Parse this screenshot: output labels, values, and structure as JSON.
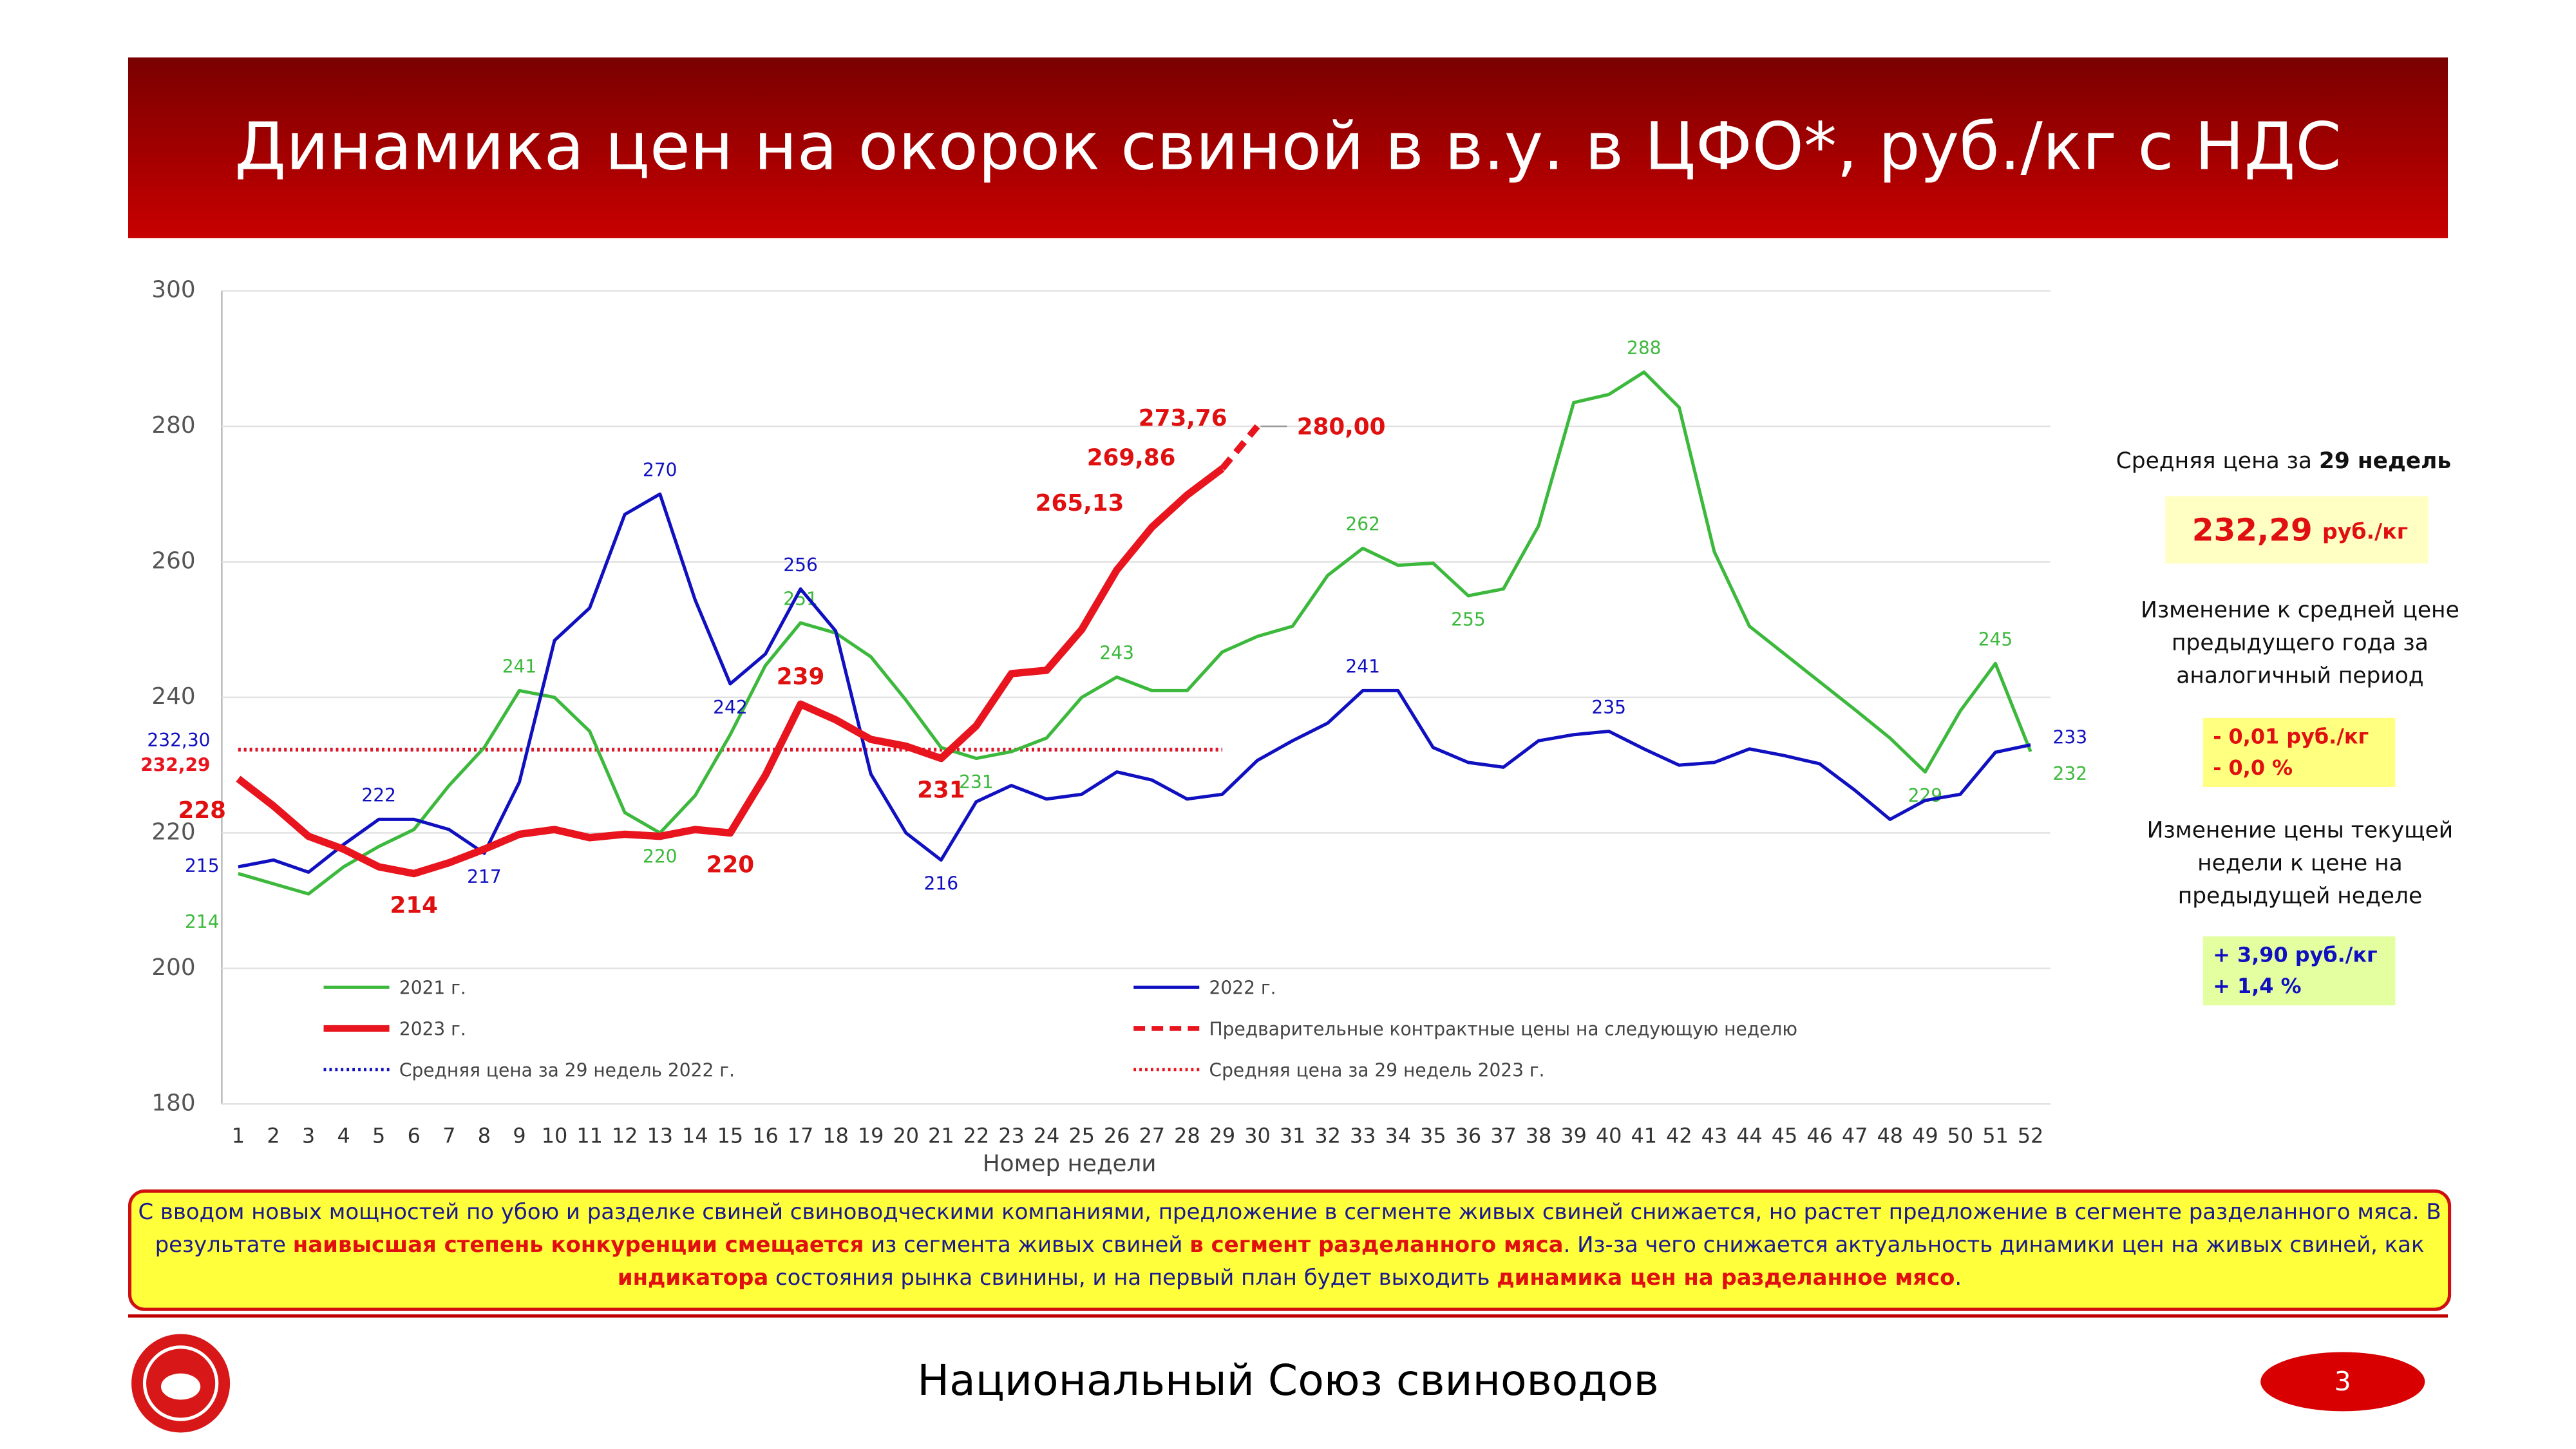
{
  "header": {
    "title": "Динамика цен на окорок свиной в в.у. в ЦФО*, руб./кг с НДС"
  },
  "chart_data": {
    "type": "line",
    "x_label": "Номер недели",
    "categories": [
      1,
      2,
      3,
      4,
      5,
      6,
      7,
      8,
      9,
      10,
      11,
      12,
      13,
      14,
      15,
      16,
      17,
      18,
      19,
      20,
      21,
      22,
      23,
      24,
      25,
      26,
      27,
      28,
      29,
      30,
      31,
      32,
      33,
      34,
      35,
      36,
      37,
      38,
      39,
      40,
      41,
      42,
      43,
      44,
      45,
      46,
      47,
      48,
      49,
      50,
      51,
      52
    ],
    "ylim": [
      180,
      300
    ],
    "yticks": [
      180,
      200,
      220,
      240,
      260,
      280,
      300
    ],
    "grid": true,
    "series": [
      {
        "name": "2021 г.",
        "color": "#3cb93c",
        "width": 2,
        "values": [
          214,
          212.5,
          211,
          215,
          218,
          220.5,
          227,
          232.6,
          241,
          240,
          235,
          223,
          220,
          225.5,
          234.5,
          244.7,
          251,
          249.5,
          246,
          239.6,
          232.6,
          231,
          232,
          234,
          240,
          243,
          241,
          241,
          246.7,
          249,
          250.5,
          258,
          262,
          259.5,
          259.8,
          255,
          256,
          265.3,
          283.5,
          284.7,
          288,
          282.8,
          261.5,
          250.5,
          246.4,
          242.3,
          238.2,
          234,
          229,
          238,
          245,
          232
        ],
        "value_labels": [
          "214",
          null,
          null,
          null,
          null,
          null,
          null,
          null,
          "241",
          null,
          null,
          null,
          "220",
          null,
          null,
          null,
          "251",
          null,
          null,
          null,
          null,
          "231",
          null,
          null,
          null,
          "243",
          null,
          null,
          null,
          null,
          null,
          null,
          "262",
          null,
          null,
          "255",
          null,
          null,
          null,
          null,
          "288",
          null,
          null,
          null,
          null,
          null,
          null,
          null,
          "229",
          null,
          "245",
          "232"
        ]
      },
      {
        "name": "2022 г.",
        "color": "#1010c0",
        "width": 2,
        "values": [
          215,
          216,
          214.2,
          218.3,
          222,
          222,
          220.5,
          217,
          227.5,
          248.4,
          253.2,
          267,
          270,
          254.4,
          242,
          246.4,
          256,
          249.8,
          228.7,
          220,
          216,
          224.6,
          227,
          225,
          225.7,
          229,
          227.8,
          225,
          225.7,
          230.7,
          233.6,
          236.2,
          241,
          241,
          232.6,
          230.4,
          229.7,
          233.6,
          234.5,
          235,
          232.4,
          230,
          230.4,
          232.4,
          231.4,
          230.2,
          226.3,
          222,
          224.8,
          225.7,
          231.9,
          233
        ],
        "value_labels": [
          "215",
          null,
          null,
          null,
          "222",
          null,
          null,
          "217",
          null,
          null,
          null,
          null,
          "270",
          null,
          "242",
          null,
          "256",
          null,
          null,
          null,
          "216",
          null,
          null,
          null,
          null,
          null,
          null,
          null,
          null,
          null,
          null,
          null,
          "241",
          null,
          null,
          null,
          null,
          null,
          null,
          "235",
          null,
          null,
          null,
          null,
          null,
          null,
          null,
          null,
          null,
          null,
          null,
          "233"
        ]
      },
      {
        "name": "2023 г.",
        "color": "#e8141e",
        "width": 4.5,
        "values": [
          228,
          224,
          219.5,
          217.6,
          215,
          214,
          215.6,
          217.6,
          219.8,
          220.5,
          219.3,
          219.8,
          219.5,
          220.5,
          220,
          228.5,
          239,
          236.7,
          233.8,
          232.8,
          231,
          235.8,
          243.5,
          244,
          250,
          258.8,
          265.13,
          269.86,
          273.76,
          null,
          null,
          null,
          null,
          null,
          null,
          null,
          null,
          null,
          null,
          null,
          null,
          null,
          null,
          null,
          null,
          null,
          null,
          null,
          null,
          null,
          null,
          null
        ],
        "value_labels": [
          "228",
          null,
          null,
          null,
          null,
          "214",
          null,
          null,
          null,
          null,
          null,
          null,
          null,
          null,
          "220",
          null,
          "239",
          null,
          null,
          null,
          "231",
          null,
          null,
          null,
          null,
          null,
          "265,13",
          "269,86",
          "273,76",
          null,
          null,
          null,
          null,
          null,
          null,
          null,
          null,
          null,
          null,
          null,
          null,
          null,
          null,
          null,
          null,
          null,
          null,
          null,
          null,
          null,
          null,
          null
        ]
      }
    ],
    "preliminary": {
      "name": "Предварительные контрактные цены на следующую неделю",
      "color": "#e8141e",
      "x": [
        29,
        30
      ],
      "values": [
        273.76,
        280.0
      ],
      "value_labels": [
        null,
        "280,00"
      ]
    },
    "average_lines": [
      {
        "name": "Средняя цена за 29 недель 2022 г.",
        "color": "#1010c0",
        "value": 232.3,
        "value_label": "232,30",
        "weeks": [
          1,
          29
        ]
      },
      {
        "name": "Средняя цена за 29 недель 2023 г.",
        "color": "#e8141e",
        "value": 232.29,
        "value_label": "232,29",
        "weeks": [
          1,
          29
        ]
      }
    ]
  },
  "side_panel": {
    "avg_title": [
      {
        "text": "Средняя цена за "
      },
      {
        "text": "29 недель",
        "bold": true
      }
    ],
    "avg_value": "232,29",
    "avg_unit": "руб./кг",
    "change_year_title": [
      "Изменение к средней цене",
      "предыдущего года за",
      "аналогичный период"
    ],
    "change_year": [
      "- 0,01 руб./кг",
      "- 0,0 %"
    ],
    "change_week_title": [
      "Изменение цены текущей",
      "недели к цене на",
      "предыдущей неделе"
    ],
    "change_week": [
      "+ 3,90 руб./кг",
      "+ 1,4 %"
    ]
  },
  "note": [
    {
      "text": "С вводом новых мощностей по убою и разделке свиней свиноводческими компаниями, предложение в сегменте живых свиней снижается, но растет предложение в сегменте разделанного мяса.  В результате "
    },
    {
      "text": "наивысшая степень конкуренции смещается",
      "highlight": true
    },
    {
      "text": " из сегмента живых свиней "
    },
    {
      "text": "в сегмент разделанного мяса",
      "highlight": true
    },
    {
      "text": ". Из-за чего снижается актуальность динамики цен на живых свиней, как "
    },
    {
      "text": "индикатора",
      "highlight": true
    },
    {
      "text": " состояния рынка свинины, и на первый план будет выходить "
    },
    {
      "text": "динамика цен на разделанное мясо",
      "highlight": true
    },
    {
      "text": "."
    }
  ],
  "footer": {
    "organization": "Национальный Союз свиноводов",
    "page": "3"
  }
}
